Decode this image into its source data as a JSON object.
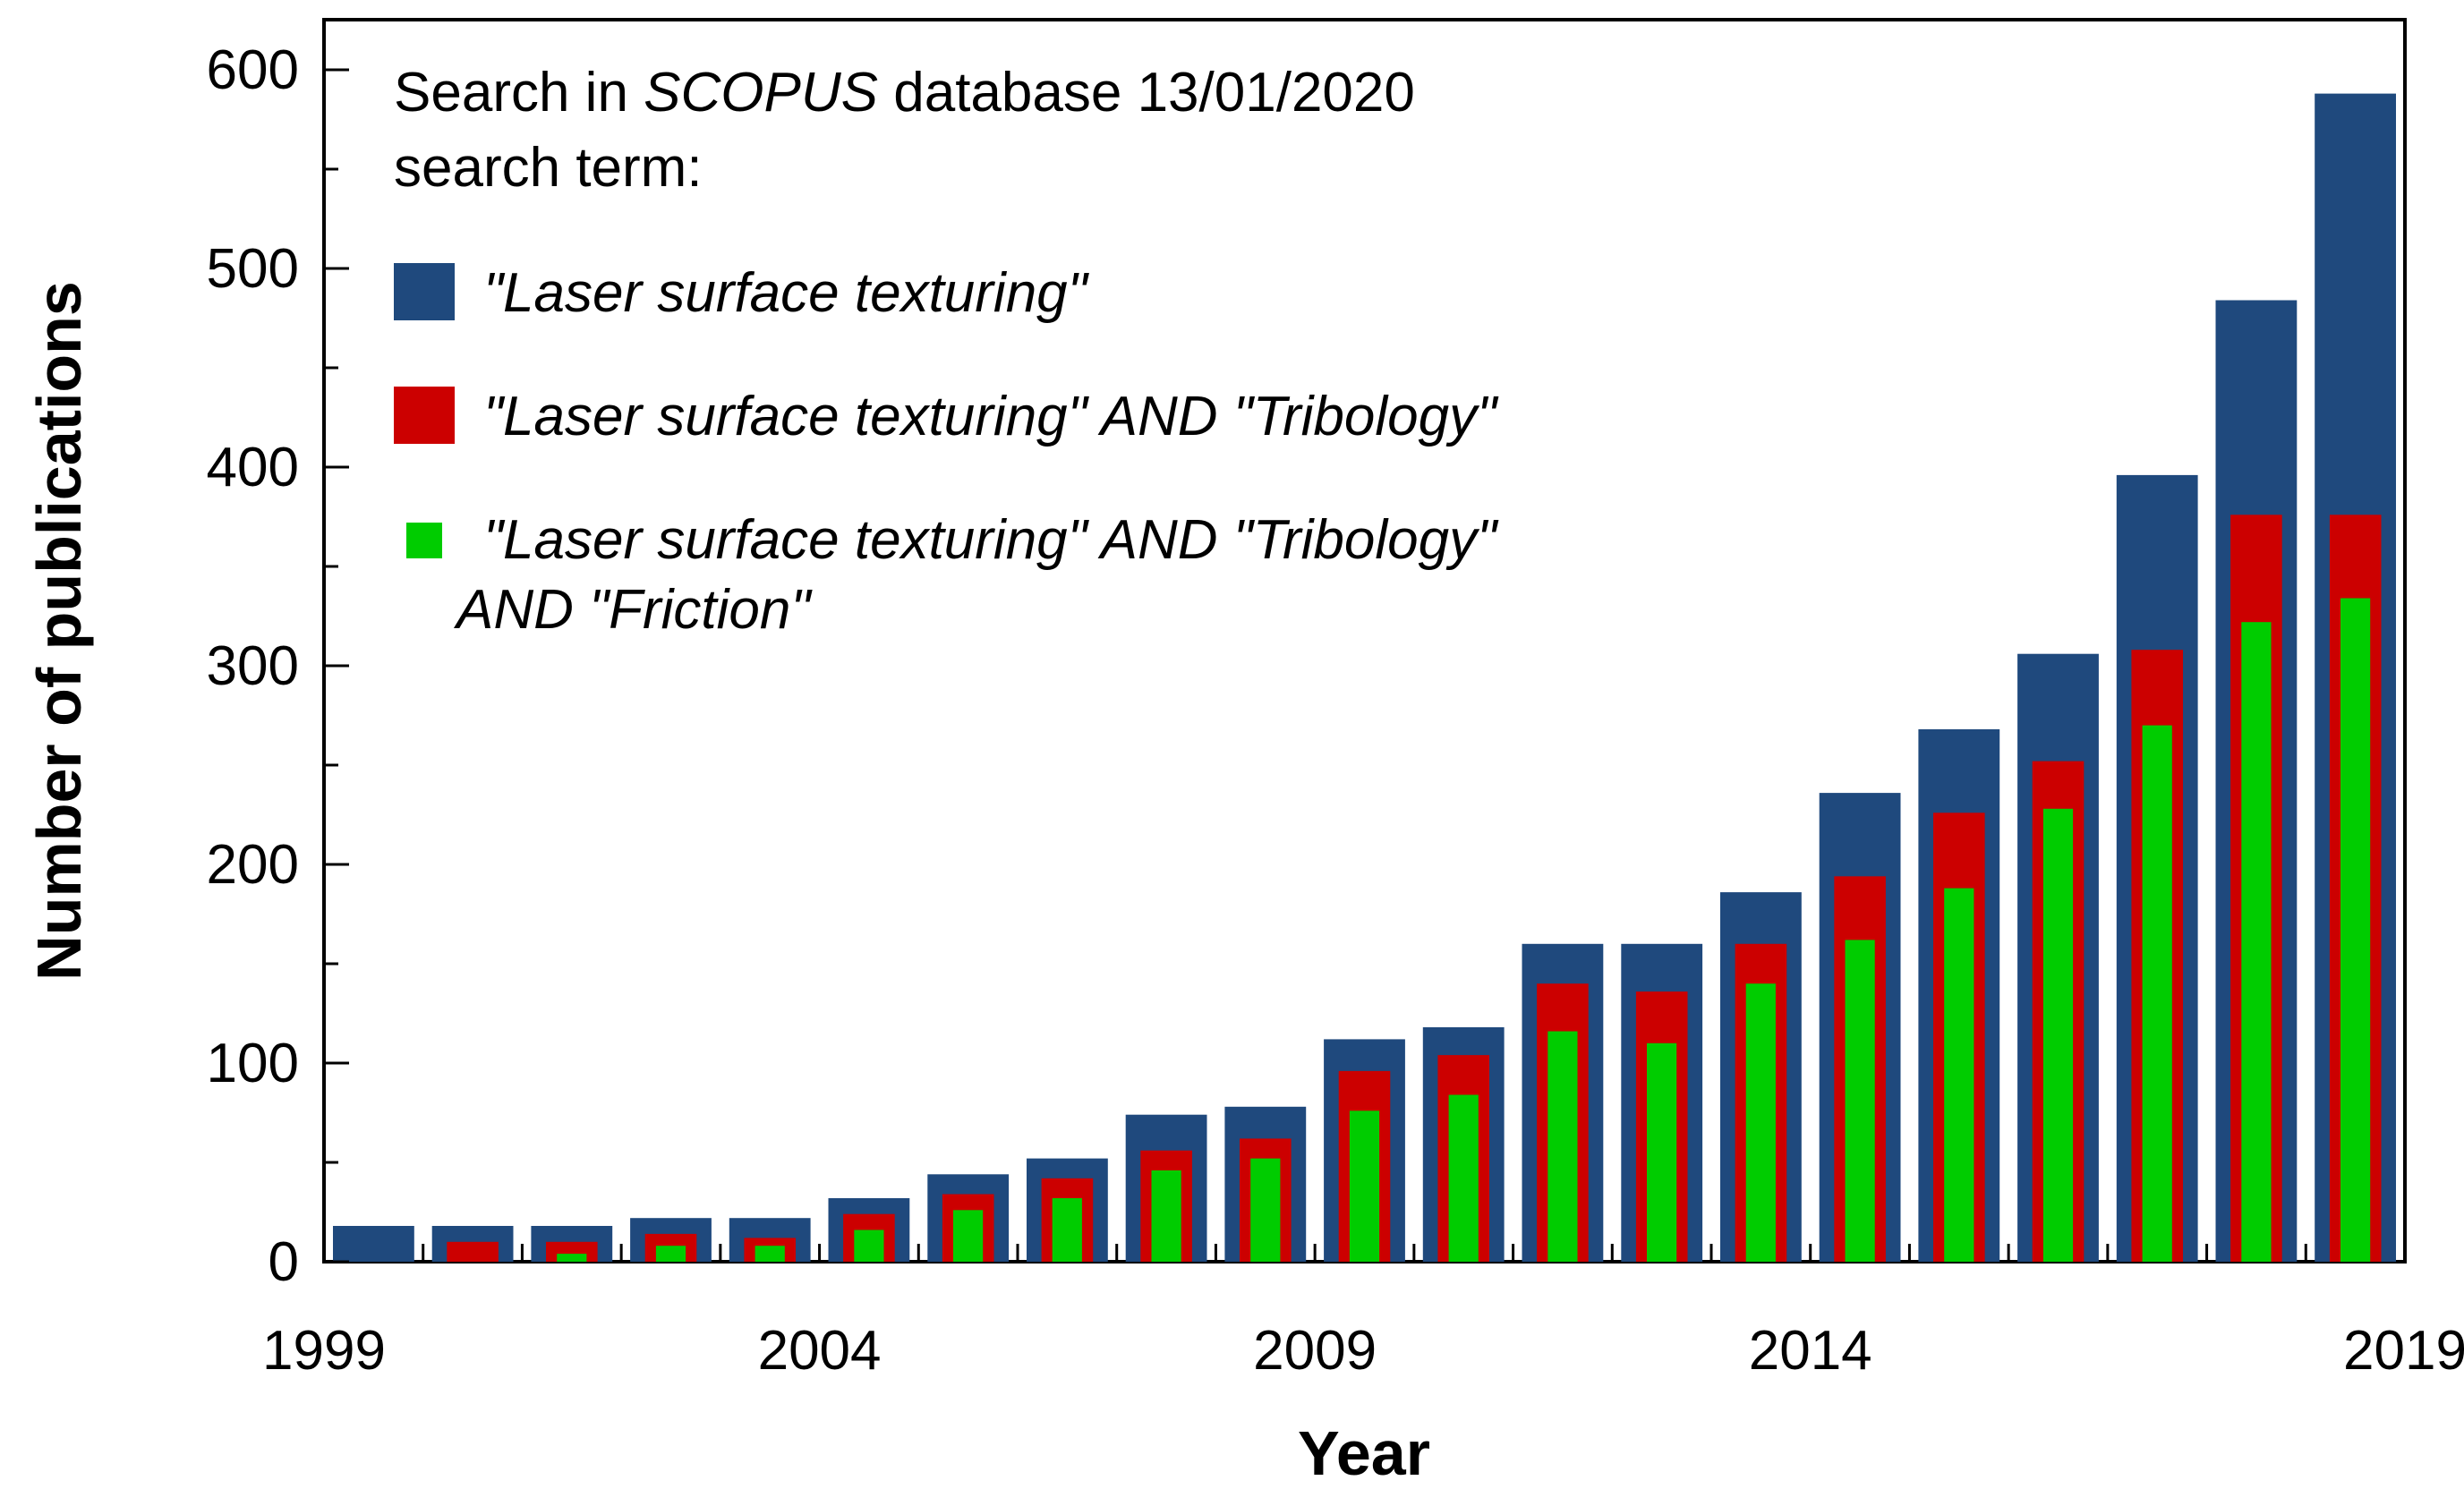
{
  "chart_data": {
    "type": "bar",
    "title": "",
    "xlabel": "Year",
    "ylabel": "Number of publications",
    "ylim": [
      0,
      600
    ],
    "yticks": [
      "0",
      "100",
      "200",
      "300",
      "400",
      "500",
      "600"
    ],
    "xticks": [
      "1999",
      "2004",
      "2009",
      "2014",
      "2019"
    ],
    "categories": [
      "1999",
      "2000",
      "2001",
      "2002",
      "2003",
      "2004",
      "2005",
      "2006",
      "2007",
      "2008",
      "2009",
      "2010",
      "2011",
      "2012",
      "2013",
      "2014",
      "2015",
      "2016",
      "2017",
      "2018",
      "2019"
    ],
    "series": [
      {
        "name": "\"Laser surface texturing\"",
        "color": "#1f497d",
        "values": [
          18,
          18,
          18,
          22,
          22,
          32,
          44,
          52,
          74,
          78,
          112,
          118,
          160,
          160,
          186,
          236,
          268,
          306,
          396,
          484,
          588
        ]
      },
      {
        "name": "\"Laser surface texturing\" AND \"Tribology\"",
        "color": "#cc0000",
        "values": [
          0,
          10,
          10,
          14,
          12,
          24,
          34,
          42,
          56,
          62,
          96,
          104,
          140,
          136,
          160,
          194,
          226,
          252,
          308,
          376,
          376
        ]
      },
      {
        "name": "\"Laser surface texturing\"  AND \"Tribology\" AND \"Friction\"",
        "color": "#00cc00",
        "values": [
          0,
          0,
          4,
          8,
          8,
          16,
          26,
          32,
          46,
          52,
          76,
          84,
          116,
          110,
          140,
          162,
          188,
          228,
          270,
          322,
          334
        ]
      }
    ],
    "legend": {
      "header_prefix": "Search in ",
      "header_database": "SCOPUS",
      "header_suffix": " database 13/01/2020",
      "header_line2": "search term:",
      "entry1": "\"Laser surface texturing\"",
      "entry2": "\"Laser surface texturing\" AND \"Tribology\"",
      "entry3_line1": "\"Laser surface texturing\"  AND \"Tribology\"",
      "entry3_line2": "AND \"Friction\"",
      "placement": "top-left"
    }
  }
}
